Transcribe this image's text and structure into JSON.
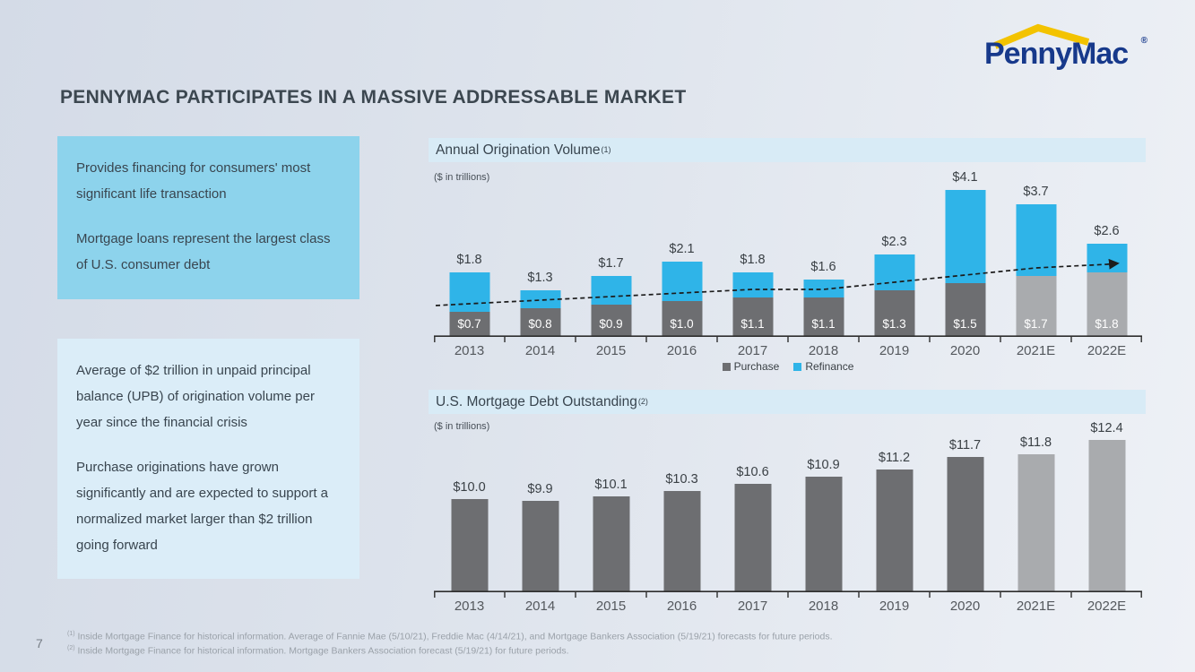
{
  "logo": {
    "text": "PennyMac",
    "registered": "®",
    "navy": "#17398b",
    "gold": "#f3c300"
  },
  "page": {
    "title": "PENNYMAC PARTICIPATES IN A MASSIVE ADDRESSABLE MARKET",
    "page_number": "7"
  },
  "left_panels": [
    {
      "paragraphs": [
        "Provides financing for consumers' most significant life transaction",
        "Mortgage loans represent the largest class of U.S. consumer debt"
      ]
    },
    {
      "paragraphs": [
        "Average of $2 trillion in unpaid principal balance (UPB) of origination volume per year since the financial crisis",
        "Purchase originations have grown significantly and are expected to support a normalized market larger than $2 trillion going forward"
      ]
    }
  ],
  "chart_data": [
    {
      "type": "bar",
      "subtype": "stacked",
      "title": "Annual Origination Volume",
      "footnote_ref": "(1)",
      "units_label": "($ in trillions)",
      "categories": [
        "2013",
        "2014",
        "2015",
        "2016",
        "2017",
        "2018",
        "2019",
        "2020",
        "2021E",
        "2022E"
      ],
      "series": [
        {
          "name": "Purchase",
          "color": "#6d6e71",
          "estimate_color": "#a9abae",
          "values": [
            0.7,
            0.8,
            0.9,
            1.0,
            1.1,
            1.1,
            1.3,
            1.5,
            1.7,
            1.8
          ],
          "labels": [
            "$0.7",
            "$0.8",
            "$0.9",
            "$1.0",
            "$1.1",
            "$1.1",
            "$1.3",
            "$1.5",
            "$1.7",
            "$1.8"
          ]
        },
        {
          "name": "Refinance",
          "color": "#2fb4e8",
          "estimate_color": "#2fb4e8",
          "values": [
            1.1,
            0.5,
            0.8,
            1.1,
            0.7,
            0.5,
            1.0,
            2.6,
            2.0,
            0.8
          ],
          "labels": [
            "",
            "",
            "",
            "",
            "",
            "",
            "",
            "",
            "",
            ""
          ]
        }
      ],
      "totals": [
        1.8,
        1.3,
        1.7,
        2.1,
        1.8,
        1.6,
        2.3,
        4.1,
        3.7,
        2.6
      ],
      "total_labels": [
        "$1.8",
        "$1.3",
        "$1.7",
        "$2.1",
        "$1.8",
        "$1.6",
        "$2.3",
        "$4.1",
        "$3.7",
        "$2.6"
      ],
      "legend": [
        "Purchase",
        "Refinance"
      ],
      "legend_position": "bottom-center",
      "trend_line": {
        "present": true,
        "style": "dashed-arrow",
        "tracks": "Purchase tops"
      },
      "ylim": [
        0,
        4.3
      ],
      "grid": false
    },
    {
      "type": "bar",
      "subtype": "simple",
      "title": "U.S. Mortgage Debt Outstanding",
      "footnote_ref": "(2)",
      "units_label": "($ in trillions)",
      "categories": [
        "2013",
        "2014",
        "2015",
        "2016",
        "2017",
        "2018",
        "2019",
        "2020",
        "2021E",
        "2022E"
      ],
      "values": [
        10.0,
        9.9,
        10.1,
        10.3,
        10.6,
        10.9,
        11.2,
        11.7,
        11.8,
        12.4
      ],
      "labels": [
        "$10.0",
        "$9.9",
        "$10.1",
        "$10.3",
        "$10.6",
        "$10.9",
        "$11.2",
        "$11.7",
        "$11.8",
        "$12.4"
      ],
      "bar_color": "#6d6e71",
      "estimate_color": "#a9abae",
      "ylim": [
        6.2,
        12.6
      ],
      "grid": false
    }
  ],
  "footnotes": [
    {
      "sup": "(1)",
      "text": "Inside Mortgage Finance for historical information. Average of Fannie Mae (5/10/21), Freddie Mac (4/14/21), and Mortgage Bankers Association (5/19/21) forecasts for future periods."
    },
    {
      "sup": "(2)",
      "text": "Inside Mortgage Finance for historical information. Mortgage Bankers Association forecast (5/19/21) for future periods."
    }
  ]
}
